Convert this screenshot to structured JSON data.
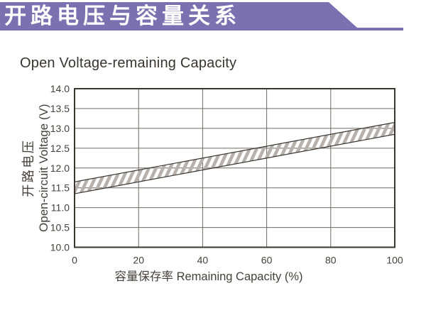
{
  "header": {
    "title": "开路电压与容量关系"
  },
  "colors": {
    "banner": "#7b71b1",
    "text": "#45403a",
    "title_text": "#39342e",
    "line": "#3a352f",
    "grid": "#6e6862",
    "hatch": "#b6b1ac"
  },
  "chart_data": {
    "type": "area",
    "title": "Open Voltage-remaining Capacity",
    "xlabel": "容量保存率 Remaining Capacity (%)",
    "ylabel": "开路电压 Open-circuit Voltage (V)",
    "ylabel_lines": [
      "开路电压",
      "Open-circuit Voltage (V)"
    ],
    "xlim": [
      0,
      100
    ],
    "ylim": [
      10.0,
      14.0
    ],
    "x_ticks": [
      0,
      20,
      40,
      60,
      80,
      100
    ],
    "y_ticks": [
      14.0,
      13.5,
      13.0,
      12.5,
      12.0,
      11.5,
      11.0,
      10.5,
      10.0
    ],
    "y_tick_decimals": 1,
    "grid": true,
    "band_style": "diagonal-hatch",
    "series": [
      {
        "name": "upper-bound",
        "x": [
          0,
          100
        ],
        "values": [
          11.65,
          13.15
        ]
      },
      {
        "name": "lower-bound",
        "x": [
          0,
          100
        ],
        "values": [
          11.35,
          12.85
        ]
      }
    ]
  }
}
